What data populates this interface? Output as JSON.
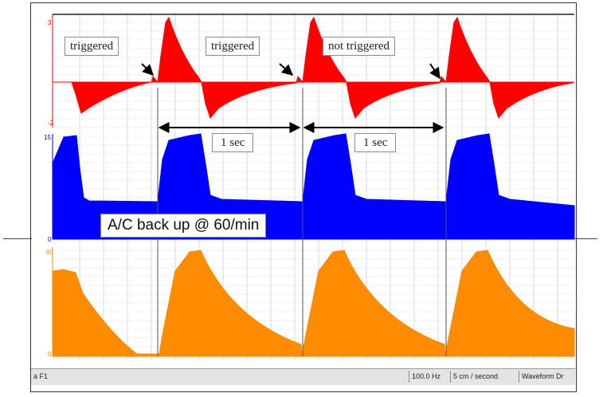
{
  "annotations": {
    "trigger_labels": [
      "triggered",
      "triggered",
      "not triggered"
    ],
    "interval_labels": [
      "1 sec",
      "1 sec"
    ],
    "mode_banner": "A/C back up @ 60/min"
  },
  "axes": {
    "top_max": "3",
    "top_min": "-2",
    "mid_max": "15",
    "mid_min": "0",
    "bottom_max": "60",
    "bottom_min": "0"
  },
  "statusbar": {
    "channel": "a F1",
    "rate": "100.0 Hz",
    "speed": "5 cm / second",
    "mode": "Waveform Dr"
  },
  "colors": {
    "pressure": "#ff0000",
    "flow": "#0000ff",
    "volume": "#ff8c00",
    "grid": "#c8c8c8"
  }
}
